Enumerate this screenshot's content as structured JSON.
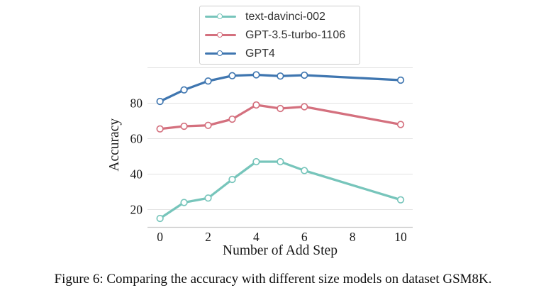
{
  "caption": "Figure 6: Comparing the accuracy with different size models on dataset GSM8K.",
  "colors": {
    "grid": "#e3e3e3",
    "axis_line": "#c9c9c9",
    "legend_border": "#cccccc",
    "tick_text": "#1a1a1a"
  },
  "chart_data": {
    "type": "line",
    "title": "",
    "xlabel": "Number of Add Step",
    "ylabel": "Accuracy",
    "x": [
      0,
      1,
      2,
      3,
      4,
      5,
      6,
      10
    ],
    "series": [
      {
        "name": "text-davinci-002",
        "color": "#77c5bb",
        "values": [
          15,
          24,
          26.5,
          37,
          47,
          47,
          42,
          25.5
        ]
      },
      {
        "name": "GPT-3.5-turbo-1106",
        "color": "#d4707e",
        "values": [
          65.5,
          67,
          67.5,
          71,
          79,
          77,
          78,
          68
        ]
      },
      {
        "name": "GPT4",
        "color": "#3f76b0",
        "values": [
          81,
          87.5,
          92.5,
          95.5,
          96,
          95.3,
          95.8,
          93
        ]
      }
    ],
    "xticks": [
      0,
      2,
      4,
      6,
      8,
      10
    ],
    "yticks": [
      20,
      40,
      60,
      80
    ],
    "ygrid": [
      20,
      40,
      60,
      80,
      100
    ],
    "xlim": [
      -0.52,
      10.5
    ],
    "ylim": [
      10,
      103
    ],
    "grid": "horizontal",
    "legend_position": "top-center",
    "marker": "open-circle"
  }
}
